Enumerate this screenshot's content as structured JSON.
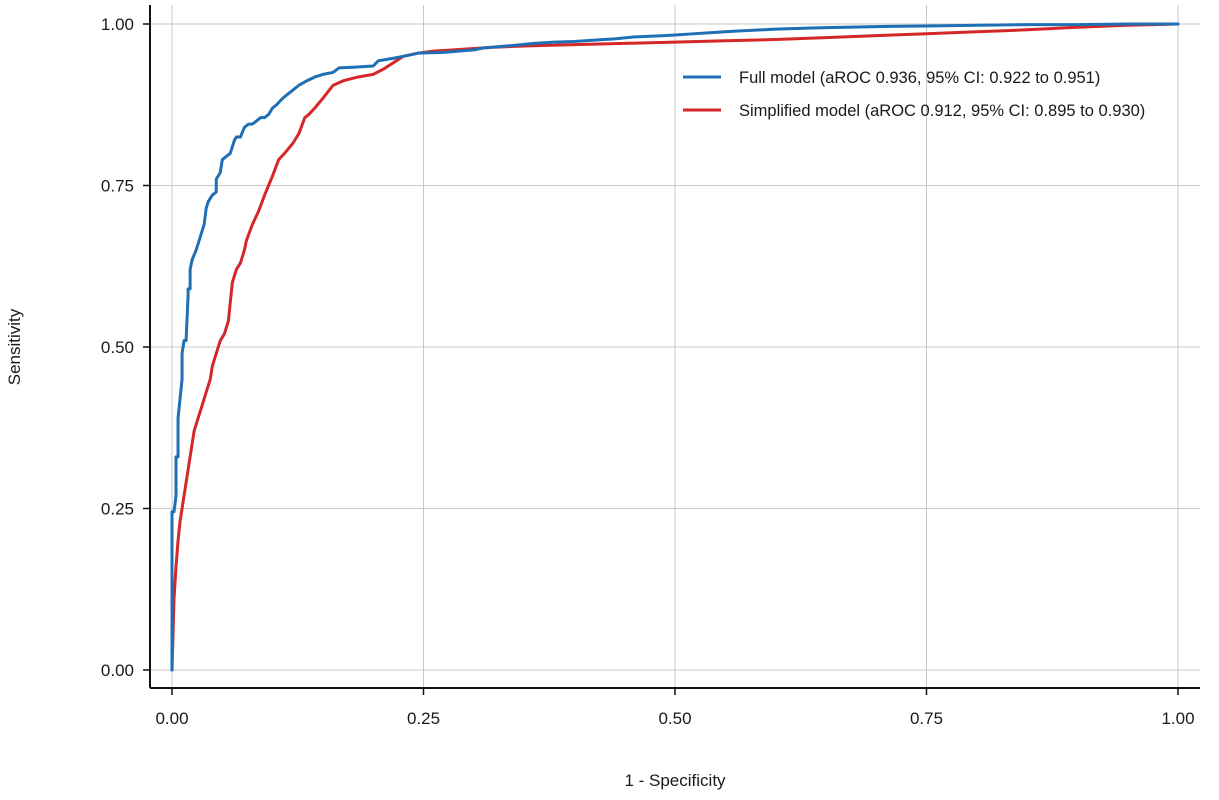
{
  "chart_data": {
    "type": "line",
    "title": "",
    "xlabel": "1 - Specificity",
    "ylabel": "Sensitivity",
    "xlim": [
      0,
      1
    ],
    "ylim": [
      0,
      1
    ],
    "xticks": [
      0,
      0.25,
      0.5,
      0.75,
      1
    ],
    "yticks": [
      0,
      0.25,
      0.5,
      0.75,
      1
    ],
    "xtick_labels": [
      "0.00",
      "0.25",
      "0.50",
      "0.75",
      "1.00"
    ],
    "ytick_labels": [
      "0.00",
      "0.25",
      "0.50",
      "0.75",
      "1.00"
    ],
    "grid": true,
    "legend_position": "top-right",
    "series": [
      {
        "name": "Full model (aROC 0.936, 95% CI: 0.922 to 0.951)",
        "color": "#1f6fb4",
        "x": [
          0.0,
          0.0,
          0.002,
          0.004,
          0.004,
          0.006,
          0.006,
          0.008,
          0.01,
          0.01,
          0.012,
          0.014,
          0.016,
          0.016,
          0.018,
          0.018,
          0.02,
          0.024,
          0.028,
          0.032,
          0.034,
          0.036,
          0.04,
          0.044,
          0.044,
          0.048,
          0.05,
          0.054,
          0.058,
          0.062,
          0.064,
          0.068,
          0.072,
          0.076,
          0.08,
          0.084,
          0.088,
          0.092,
          0.096,
          0.1,
          0.104,
          0.11,
          0.118,
          0.126,
          0.134,
          0.142,
          0.15,
          0.16,
          0.166,
          0.18,
          0.2,
          0.205,
          0.22,
          0.23,
          0.245,
          0.27,
          0.285,
          0.3,
          0.31,
          0.325,
          0.34,
          0.36,
          0.38,
          0.4,
          0.42,
          0.44,
          0.46,
          0.49,
          0.52,
          0.54,
          0.56,
          0.6,
          0.64,
          0.7,
          0.75,
          0.8,
          0.85,
          0.9,
          0.95,
          1.0
        ],
        "y": [
          0.0,
          0.245,
          0.245,
          0.27,
          0.33,
          0.33,
          0.39,
          0.42,
          0.45,
          0.49,
          0.51,
          0.51,
          0.58,
          0.59,
          0.59,
          0.62,
          0.635,
          0.65,
          0.67,
          0.69,
          0.715,
          0.725,
          0.735,
          0.74,
          0.76,
          0.77,
          0.79,
          0.795,
          0.8,
          0.82,
          0.825,
          0.825,
          0.84,
          0.845,
          0.845,
          0.85,
          0.855,
          0.855,
          0.86,
          0.87,
          0.875,
          0.885,
          0.895,
          0.905,
          0.912,
          0.918,
          0.922,
          0.925,
          0.932,
          0.933,
          0.935,
          0.943,
          0.947,
          0.95,
          0.955,
          0.956,
          0.958,
          0.96,
          0.963,
          0.965,
          0.967,
          0.97,
          0.972,
          0.973,
          0.975,
          0.977,
          0.98,
          0.982,
          0.985,
          0.987,
          0.989,
          0.992,
          0.994,
          0.996,
          0.997,
          0.998,
          0.999,
          0.999,
          1.0,
          1.0
        ]
      },
      {
        "name": "Simplified model (aROC 0.912, 95% CI: 0.895 to 0.930)",
        "color": "#d62728",
        "x": [
          0.0,
          0.002,
          0.004,
          0.006,
          0.008,
          0.01,
          0.012,
          0.014,
          0.016,
          0.018,
          0.02,
          0.022,
          0.024,
          0.026,
          0.028,
          0.03,
          0.034,
          0.038,
          0.04,
          0.044,
          0.048,
          0.052,
          0.056,
          0.058,
          0.06,
          0.064,
          0.068,
          0.072,
          0.074,
          0.08,
          0.086,
          0.092,
          0.096,
          0.1,
          0.106,
          0.112,
          0.12,
          0.126,
          0.132,
          0.136,
          0.142,
          0.15,
          0.16,
          0.17,
          0.185,
          0.2,
          0.21,
          0.22,
          0.23,
          0.245,
          0.26,
          0.28,
          0.3,
          0.32,
          0.35,
          0.4,
          0.45,
          0.5,
          0.55,
          0.6,
          0.65,
          0.7,
          0.75,
          0.8,
          0.85,
          0.9,
          0.95,
          1.0
        ],
        "y": [
          0.0,
          0.11,
          0.16,
          0.2,
          0.23,
          0.25,
          0.27,
          0.29,
          0.31,
          0.33,
          0.35,
          0.37,
          0.38,
          0.39,
          0.4,
          0.41,
          0.43,
          0.45,
          0.47,
          0.49,
          0.51,
          0.52,
          0.54,
          0.57,
          0.6,
          0.62,
          0.63,
          0.65,
          0.665,
          0.69,
          0.71,
          0.735,
          0.75,
          0.765,
          0.79,
          0.8,
          0.815,
          0.83,
          0.855,
          0.86,
          0.87,
          0.885,
          0.905,
          0.912,
          0.918,
          0.922,
          0.93,
          0.94,
          0.95,
          0.955,
          0.958,
          0.96,
          0.962,
          0.964,
          0.966,
          0.968,
          0.97,
          0.972,
          0.974,
          0.976,
          0.979,
          0.982,
          0.985,
          0.988,
          0.991,
          0.995,
          0.998,
          1.0
        ]
      }
    ]
  }
}
